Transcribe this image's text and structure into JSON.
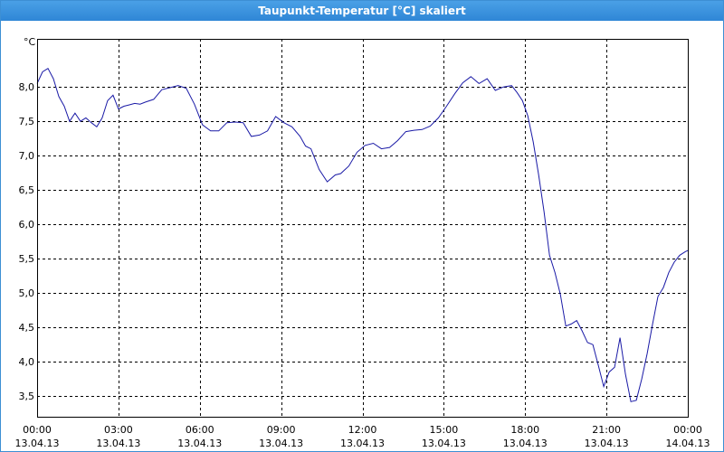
{
  "window": {
    "title": "Taupunkt-Temperatur [°C] skaliert"
  },
  "colors": {
    "line": "#1a1aa6",
    "grid": "#000000",
    "titlebar": "#3a90dc"
  },
  "chart_data": {
    "type": "line",
    "title": "Taupunkt-Temperatur [°C] skaliert",
    "ylabel": "°C",
    "ylim": [
      3.2,
      8.7
    ],
    "xlim_hours": [
      0,
      24
    ],
    "grid": true,
    "y_ticks": [
      "8,0",
      "7,5",
      "7,0",
      "6,5",
      "6,0",
      "5,5",
      "5,0",
      "4,5",
      "4,0",
      "3,5"
    ],
    "y_tick_values": [
      8.0,
      7.5,
      7.0,
      6.5,
      6.0,
      5.5,
      5.0,
      4.5,
      4.0,
      3.5
    ],
    "x_ticks": [
      {
        "time": "00:00",
        "date": "13.04.13"
      },
      {
        "time": "03:00",
        "date": "13.04.13"
      },
      {
        "time": "06:00",
        "date": "13.04.13"
      },
      {
        "time": "09:00",
        "date": "13.04.13"
      },
      {
        "time": "12:00",
        "date": "13.04.13"
      },
      {
        "time": "15:00",
        "date": "13.04.13"
      },
      {
        "time": "18:00",
        "date": "13.04.13"
      },
      {
        "time": "21:00",
        "date": "13.04.13"
      },
      {
        "time": "00:00",
        "date": "14.04.13"
      }
    ],
    "x_tick_hours": [
      0,
      3,
      6,
      9,
      12,
      15,
      18,
      21,
      24
    ],
    "series": [
      {
        "x_hours": [
          0,
          0.2,
          0.4,
          0.6,
          0.8,
          1.0,
          1.2,
          1.4,
          1.6,
          1.8,
          2.0,
          2.2,
          2.4,
          2.6,
          2.8,
          3.0,
          3.2,
          3.4,
          3.6,
          3.8,
          4.0,
          4.3,
          4.6,
          4.9,
          5.2,
          5.5,
          5.8,
          6.1,
          6.4,
          6.7,
          7.0,
          7.3,
          7.6,
          7.9,
          8.2,
          8.5,
          8.8,
          9.1,
          9.4,
          9.7,
          9.9,
          10.1,
          10.4,
          10.7,
          11.0,
          11.2,
          11.5,
          11.8,
          12.1,
          12.4,
          12.7,
          13.0,
          13.3,
          13.6,
          13.9,
          14.2,
          14.5,
          14.8,
          15.1,
          15.4,
          15.7,
          16.0,
          16.3,
          16.6,
          16.9,
          17.2,
          17.5,
          17.7,
          17.9,
          18.1,
          18.3,
          18.5,
          18.7,
          18.9,
          19.1,
          19.3,
          19.5,
          19.7,
          19.9,
          20.1,
          20.3,
          20.5,
          20.7,
          20.9,
          21.1,
          21.3,
          21.5,
          21.7,
          21.9,
          22.1,
          22.3,
          22.5,
          22.7,
          22.9,
          23.1,
          23.3,
          23.5,
          23.7,
          23.9,
          24.0
        ],
        "values": [
          8.05,
          8.22,
          8.27,
          8.12,
          7.86,
          7.72,
          7.5,
          7.62,
          7.5,
          7.55,
          7.48,
          7.42,
          7.55,
          7.8,
          7.88,
          7.68,
          7.72,
          7.74,
          7.76,
          7.75,
          7.78,
          7.82,
          7.96,
          7.99,
          8.02,
          7.98,
          7.75,
          7.45,
          7.36,
          7.36,
          7.48,
          7.49,
          7.48,
          7.28,
          7.3,
          7.36,
          7.57,
          7.48,
          7.42,
          7.28,
          7.14,
          7.1,
          6.8,
          6.62,
          6.72,
          6.74,
          6.85,
          7.05,
          7.15,
          7.18,
          7.1,
          7.12,
          7.22,
          7.35,
          7.37,
          7.38,
          7.43,
          7.55,
          7.72,
          7.9,
          8.06,
          8.15,
          8.05,
          8.12,
          7.95,
          8.0,
          8.02,
          7.92,
          7.8,
          7.58,
          7.2,
          6.72,
          6.18,
          5.55,
          5.3,
          4.98,
          4.52,
          4.55,
          4.6,
          4.45,
          4.28,
          4.25,
          3.95,
          3.64,
          3.85,
          3.92,
          4.35,
          3.82,
          3.42,
          3.44,
          3.75,
          4.12,
          4.55,
          4.95,
          5.08,
          5.3,
          5.45,
          5.55,
          5.6,
          5.62
        ]
      }
    ]
  }
}
